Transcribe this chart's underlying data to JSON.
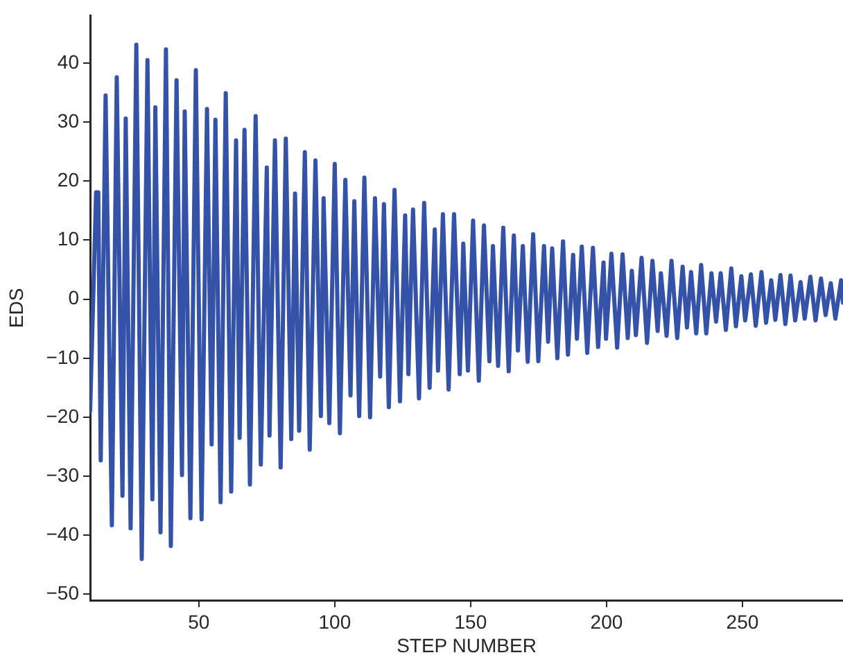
{
  "chart_data": {
    "type": "line",
    "xlabel": "STEP NUMBER",
    "ylabel": "EDS",
    "color": "#3352a8",
    "marker": "none",
    "line_style": "solid",
    "xlim": [
      10,
      287
    ],
    "ylim": [
      -51,
      48
    ],
    "xticks": [
      50,
      100,
      150,
      200,
      250
    ],
    "yticks": [
      -50,
      -40,
      -30,
      -20,
      -10,
      0,
      10,
      20,
      30,
      40
    ],
    "x": [
      10,
      12.2,
      13.0,
      13.9,
      15.7,
      18.0,
      19.8,
      21.9,
      23.1,
      24.9,
      27.0,
      29.0,
      31.1,
      32.9,
      34.0,
      35.9,
      37.9,
      39.7,
      41.8,
      43.8,
      44.8,
      46.9,
      48.9,
      51.0,
      53.0,
      54.7,
      56.1,
      58.0,
      59.9,
      61.9,
      63.7,
      65.0,
      66.8,
      68.8,
      70.9,
      72.8,
      75.0,
      76.0,
      78.0,
      80.1,
      82.0,
      84.0,
      85.4,
      86.9,
      89.0,
      90.8,
      92.9,
      94.9,
      95.9,
      98.0,
      100.0,
      101.9,
      103.9,
      105.8,
      107.2,
      109.0,
      110.9,
      113.0,
      114.8,
      116.7,
      118.1,
      119.9,
      122.0,
      124.0,
      125.9,
      127.1,
      128.8,
      131.0,
      132.9,
      134.9,
      136.8,
      138.0,
      139.8,
      141.9,
      143.9,
      146.0,
      147.3,
      149.0,
      150.9,
      153.0,
      154.9,
      156.9,
      158.2,
      160.1,
      162.0,
      164.0,
      165.9,
      167.4,
      169.2,
      171.0,
      173.0,
      174.9,
      177.0,
      178.5,
      180.0,
      181.9,
      184.0,
      185.8,
      187.7,
      189.1,
      190.9,
      192.9,
      195.0,
      196.9,
      198.9,
      199.8,
      201.8,
      203.9,
      205.9,
      207.8,
      209.3,
      210.8,
      212.9,
      214.9,
      216.9,
      218.8,
      220.0,
      222.1,
      223.9,
      226.0,
      228.0,
      229.6,
      231.1,
      233.0,
      234.8,
      236.7,
      238.6,
      240.3,
      242.0,
      243.9,
      245.9,
      247.6,
      249.6,
      251.0,
      253.1,
      254.9,
      257.0,
      258.7,
      260.6,
      262.1,
      264.0,
      265.8,
      267.7,
      269.4,
      271.4,
      272.9,
      275.0,
      276.9,
      278.9,
      280.6,
      282.5,
      284.2,
      286.3,
      287
    ],
    "values": [
      -19,
      18.1,
      18.1,
      -27.3,
      34.5,
      -38.3,
      37.6,
      -33.3,
      30.6,
      -38.8,
      43.1,
      -44,
      40.5,
      -33.9,
      32.5,
      -39.5,
      42.3,
      -41.8,
      37.1,
      -29.8,
      31.8,
      -37.1,
      38.8,
      -37.3,
      32.2,
      -24.6,
      30.4,
      -34.4,
      34.9,
      -32.6,
      26.9,
      -23.5,
      28.7,
      -31.4,
      31,
      -28,
      22.3,
      -23.1,
      26.9,
      -28.5,
      27.2,
      -23.7,
      17.9,
      -22.3,
      24.9,
      -25.5,
      23.5,
      -19.8,
      17.1,
      -21,
      22.9,
      -22.7,
      20.2,
      -16.3,
      16.6,
      -19.8,
      20.6,
      -20,
      17.1,
      -13.1,
      16.1,
      -18.3,
      18.5,
      -17.3,
      14.2,
      -12.7,
      15.2,
      -16.8,
      16.3,
      -15,
      11.8,
      -12.1,
      14.4,
      -15.3,
      14.4,
      -12.7,
      9.4,
      -12.1,
      13.3,
      -13.8,
      12.5,
      -10.5,
      9,
      -11.3,
      12.1,
      -12.2,
      10.8,
      -8.7,
      9,
      -10.6,
      11,
      -10.5,
      9,
      -7.2,
      8.6,
      -10,
      9.8,
      -9.4,
      7.5,
      -6.7,
      8.9,
      -9.1,
      8.7,
      -8.1,
      6.2,
      -6.7,
      7.7,
      -8.2,
      7.6,
      -6.6,
      4.8,
      -6.1,
      7,
      -7.4,
      6.5,
      -5.4,
      4.4,
      -6.2,
      6.5,
      -6.6,
      5.5,
      -4.8,
      4.6,
      -5.8,
      5.8,
      -5.8,
      4.4,
      -3.8,
      4.4,
      -5.2,
      5.2,
      -4.6,
      3.9,
      -3.6,
      4.2,
      -4.5,
      4.6,
      -4,
      3.2,
      -3.5,
      4.1,
      -4.2,
      4,
      -3.6,
      2.9,
      -3.3,
      3.8,
      -3.6,
      3.5,
      -2.7,
      2.7,
      -3.3,
      3.2,
      -0.6
    ]
  }
}
